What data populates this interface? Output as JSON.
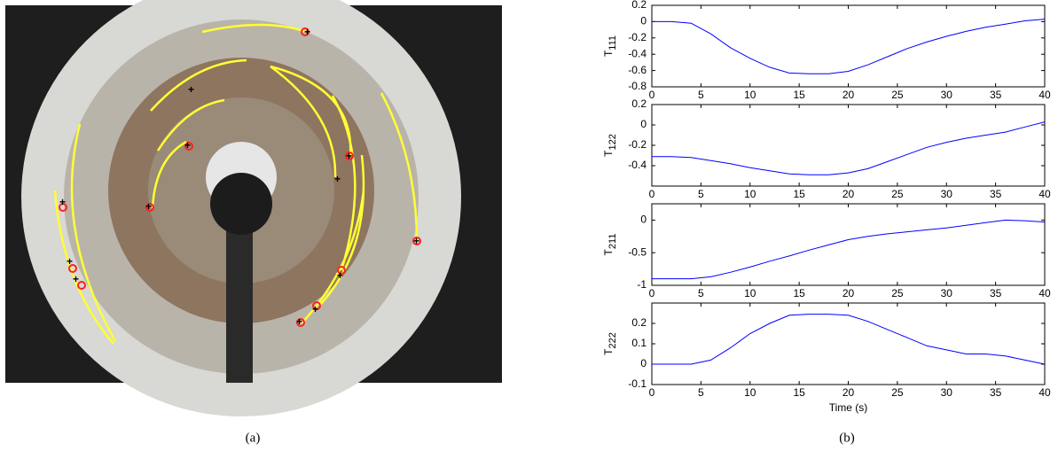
{
  "chart_data": [
    {
      "type": "line",
      "ylabel": {
        "text": "T",
        "subscript": "111"
      },
      "x": [
        0,
        2,
        4,
        6,
        8,
        10,
        12,
        14,
        16,
        18,
        20,
        22,
        24,
        26,
        28,
        30,
        32,
        34,
        36,
        38,
        40
      ],
      "series": [
        {
          "color": "#0000ff",
          "values": [
            0,
            0,
            -0.02,
            -0.15,
            -0.32,
            -0.45,
            -0.56,
            -0.63,
            -0.64,
            -0.64,
            -0.61,
            -0.53,
            -0.43,
            -0.33,
            -0.25,
            -0.18,
            -0.12,
            -0.07,
            -0.03,
            0.01,
            0.03
          ]
        }
      ],
      "xlim": [
        0,
        40
      ],
      "xticks": [
        0,
        5,
        10,
        15,
        20,
        25,
        30,
        35,
        40
      ],
      "ylim": [
        -0.8,
        0.2
      ],
      "yticks": [
        0.2,
        0,
        -0.2,
        -0.4,
        -0.6,
        -0.8
      ]
    },
    {
      "type": "line",
      "ylabel": {
        "text": "T",
        "subscript": "122"
      },
      "x": [
        0,
        2,
        4,
        6,
        8,
        10,
        12,
        14,
        16,
        18,
        20,
        22,
        24,
        26,
        28,
        30,
        32,
        34,
        36,
        38,
        40
      ],
      "series": [
        {
          "color": "#0000ff",
          "values": [
            -0.31,
            -0.31,
            -0.32,
            -0.35,
            -0.38,
            -0.42,
            -0.45,
            -0.48,
            -0.49,
            -0.49,
            -0.47,
            -0.43,
            -0.36,
            -0.29,
            -0.22,
            -0.17,
            -0.13,
            -0.1,
            -0.07,
            -0.02,
            0.03
          ]
        }
      ],
      "xlim": [
        0,
        40
      ],
      "xticks": [
        0,
        5,
        10,
        15,
        20,
        25,
        30,
        35,
        40
      ],
      "ylim": [
        -0.6,
        0.2
      ],
      "yticks": [
        0.2,
        0,
        -0.2,
        -0.4
      ]
    },
    {
      "type": "line",
      "ylabel": {
        "text": "T",
        "subscript": "211"
      },
      "x": [
        0,
        2,
        4,
        6,
        8,
        10,
        12,
        14,
        16,
        18,
        20,
        22,
        24,
        26,
        28,
        30,
        32,
        34,
        36,
        38,
        40
      ],
      "series": [
        {
          "color": "#0000ff",
          "values": [
            -0.9,
            -0.9,
            -0.9,
            -0.87,
            -0.8,
            -0.72,
            -0.63,
            -0.55,
            -0.46,
            -0.38,
            -0.3,
            -0.25,
            -0.21,
            -0.18,
            -0.15,
            -0.12,
            -0.08,
            -0.04,
            0,
            -0.01,
            -0.03
          ]
        }
      ],
      "xlim": [
        0,
        40
      ],
      "xticks": [
        0,
        5,
        10,
        15,
        20,
        25,
        30,
        35,
        40
      ],
      "ylim": [
        -1,
        0.25
      ],
      "yticks": [
        0,
        -0.5,
        -1
      ]
    },
    {
      "type": "line",
      "ylabel": {
        "text": "T",
        "subscript": "222"
      },
      "xlabel": "Time (s)",
      "x": [
        0,
        2,
        4,
        6,
        8,
        10,
        12,
        14,
        16,
        18,
        20,
        22,
        24,
        26,
        28,
        30,
        32,
        34,
        36,
        38,
        40
      ],
      "series": [
        {
          "color": "#0000ff",
          "values": [
            0,
            0,
            0,
            0.02,
            0.08,
            0.15,
            0.2,
            0.24,
            0.245,
            0.245,
            0.24,
            0.21,
            0.17,
            0.13,
            0.09,
            0.07,
            0.05,
            0.05,
            0.04,
            0.02,
            0
          ]
        }
      ],
      "xlim": [
        0,
        40
      ],
      "xticks": [
        0,
        5,
        10,
        15,
        20,
        25,
        30,
        35,
        40
      ],
      "ylim": [
        -0.1,
        0.3
      ],
      "yticks": [
        0.2,
        0.1,
        0,
        -0.1
      ]
    }
  ],
  "captions": {
    "a": "(a)",
    "b": "(b)"
  }
}
